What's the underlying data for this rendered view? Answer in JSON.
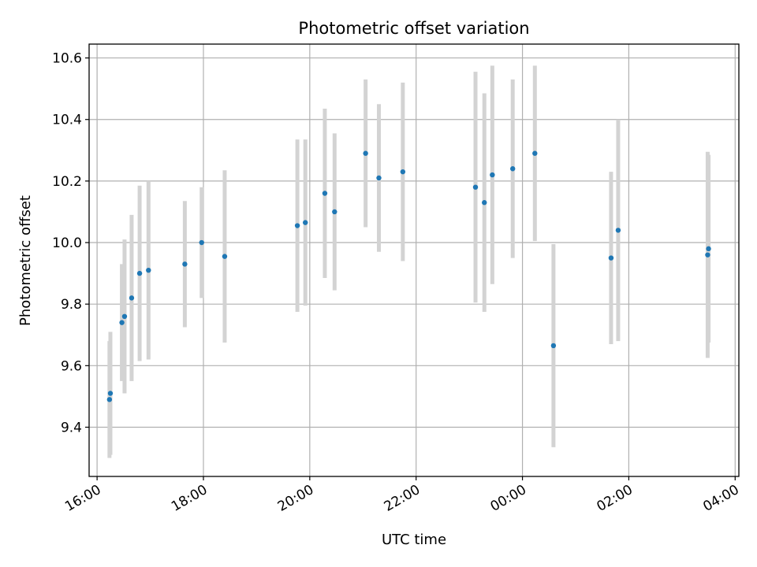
{
  "chart_data": {
    "type": "scatter",
    "title": "Photometric offset variation",
    "xlabel": "UTC time",
    "ylabel": "Photometric offset",
    "x_ticks": [
      "16:00",
      "18:00",
      "20:00",
      "22:00",
      "00:00",
      "02:00",
      "04:00"
    ],
    "x_tick_hours": [
      16,
      18,
      20,
      22,
      24,
      26,
      28
    ],
    "xlim_hours": [
      15.85,
      28.07
    ],
    "y_ticks": [
      "9.4",
      "9.6",
      "9.8",
      "10.0",
      "10.2",
      "10.4",
      "10.6"
    ],
    "y_tick_values": [
      9.4,
      9.6,
      9.8,
      10.0,
      10.2,
      10.4,
      10.6
    ],
    "ylim": [
      9.24,
      10.645
    ],
    "grid": true,
    "marker_color": "#1f77b4",
    "errorbar_color": "#d3d3d3",
    "points": [
      {
        "time": "16:14",
        "value": 9.49,
        "error": 0.19
      },
      {
        "time": "16:15",
        "value": 9.51,
        "error": 0.2
      },
      {
        "time": "16:28",
        "value": 9.74,
        "error": 0.19
      },
      {
        "time": "16:31",
        "value": 9.76,
        "error": 0.25
      },
      {
        "time": "16:39",
        "value": 9.82,
        "error": 0.27
      },
      {
        "time": "16:48",
        "value": 9.9,
        "error": 0.285
      },
      {
        "time": "16:58",
        "value": 9.91,
        "error": 0.29
      },
      {
        "time": "17:39",
        "value": 9.93,
        "error": 0.205
      },
      {
        "time": "17:58",
        "value": 10.0,
        "error": 0.18
      },
      {
        "time": "18:24",
        "value": 9.955,
        "error": 0.28
      },
      {
        "time": "19:46",
        "value": 10.055,
        "error": 0.28
      },
      {
        "time": "19:55",
        "value": 10.065,
        "error": 0.27
      },
      {
        "time": "20:17",
        "value": 10.16,
        "error": 0.275
      },
      {
        "time": "20:28",
        "value": 10.1,
        "error": 0.255
      },
      {
        "time": "21:03",
        "value": 10.29,
        "error": 0.24
      },
      {
        "time": "21:18",
        "value": 10.21,
        "error": 0.24
      },
      {
        "time": "21:45",
        "value": 10.23,
        "error": 0.29
      },
      {
        "time": "23:07",
        "value": 10.18,
        "error": 0.375
      },
      {
        "time": "23:17",
        "value": 10.13,
        "error": 0.355
      },
      {
        "time": "23:26",
        "value": 10.22,
        "error": 0.355
      },
      {
        "time": "23:49",
        "value": 10.24,
        "error": 0.29
      },
      {
        "time": "00:14",
        "value": 10.29,
        "error": 0.285
      },
      {
        "time": "00:35",
        "value": 9.665,
        "error": 0.33
      },
      {
        "time": "01:40",
        "value": 9.95,
        "error": 0.28
      },
      {
        "time": "01:48",
        "value": 10.04,
        "error": 0.36
      },
      {
        "time": "03:29",
        "value": 9.96,
        "error": 0.335
      },
      {
        "time": "03:30",
        "value": 9.98,
        "error": 0.305
      }
    ]
  }
}
